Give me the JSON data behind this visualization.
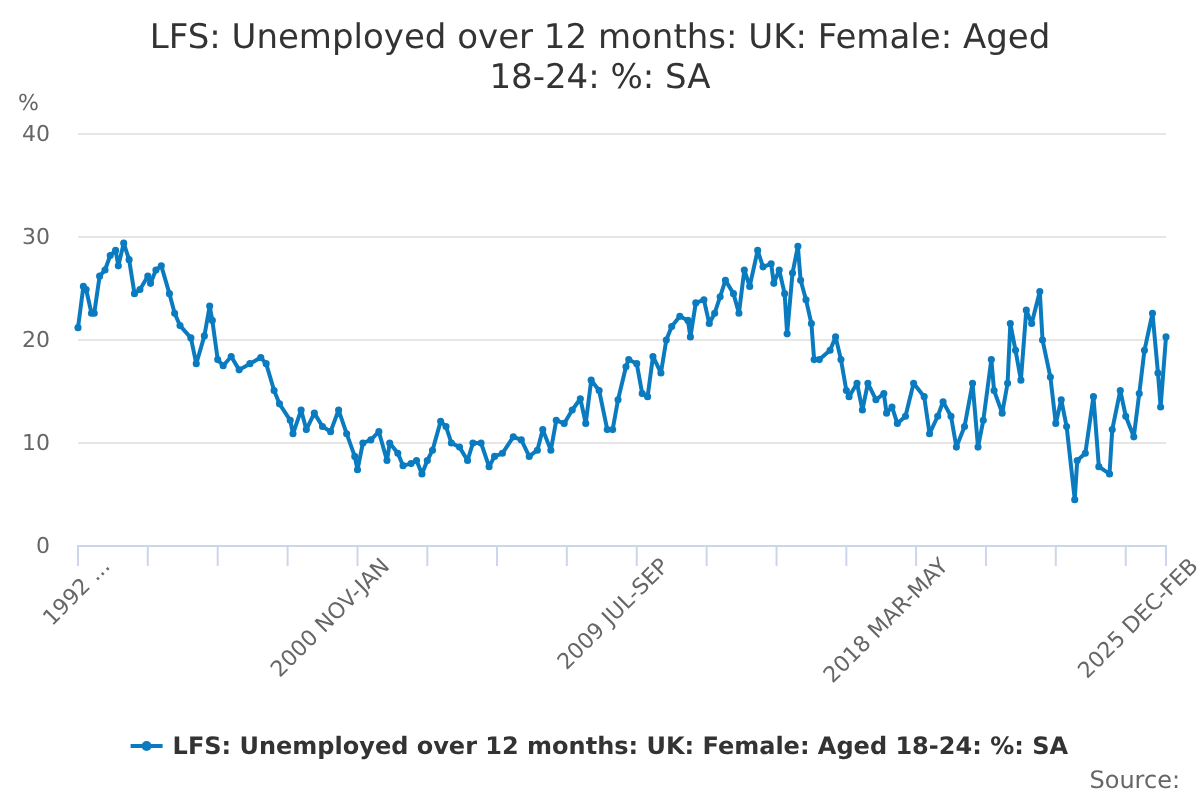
{
  "chart_data": {
    "type": "line",
    "title": "LFS: Unemployed over 12 months: UK: Female: Aged 18-24: %: SA",
    "ylabel": "%",
    "annotations": [
      "Source:"
    ],
    "xlim": [
      "1992-03",
      "2025-12"
    ],
    "xticks": [
      {
        "value": "1992-03",
        "label": "1992 ..."
      },
      {
        "value": "1994-05",
        "label": null
      },
      {
        "value": "1996-07",
        "label": null
      },
      {
        "value": "1998-09",
        "label": null
      },
      {
        "value": "2000-11",
        "label": "2000 NOV-JAN"
      },
      {
        "value": "2003-01",
        "label": null
      },
      {
        "value": "2005-03",
        "label": null
      },
      {
        "value": "2007-05",
        "label": null
      },
      {
        "value": "2009-07",
        "label": "2009 JUL-SEP"
      },
      {
        "value": "2011-09",
        "label": null
      },
      {
        "value": "2013-11",
        "label": null
      },
      {
        "value": "2016-01",
        "label": null
      },
      {
        "value": "2018-03",
        "label": "2018 MAR-MAY"
      },
      {
        "value": "2020-05",
        "label": null
      },
      {
        "value": "2022-07",
        "label": null
      },
      {
        "value": "2024-09",
        "label": null
      },
      {
        "value": "2025-12",
        "label": "2025 DEC-FEB"
      }
    ],
    "ylim": [
      0,
      40
    ],
    "yticks": [
      0,
      10,
      20,
      30,
      40
    ],
    "grid": "y",
    "legend": "bottom",
    "marker": "circle",
    "line_style": "solid",
    "series": [
      {
        "name": "LFS: Unemployed over 12 months: UK: Female: Aged 18-24: %: SA",
        "color": "#0b7bc0",
        "x": [
          "1992-03",
          "1992-05",
          "1992-06",
          "1992-08",
          "1992-09",
          "1992-11",
          "1993-01",
          "1993-03",
          "1993-05",
          "1993-06",
          "1993-08",
          "1993-10",
          "1993-12",
          "1994-02",
          "1994-05",
          "1994-06",
          "1994-08",
          "1994-10",
          "1995-01",
          "1995-03",
          "1995-05",
          "1995-09",
          "1995-11",
          "1996-02",
          "1996-04",
          "1996-05",
          "1996-07",
          "1996-09",
          "1996-12",
          "1997-03",
          "1997-07",
          "1997-11",
          "1998-01",
          "1998-04",
          "1998-06",
          "1998-10",
          "1998-11",
          "1999-02",
          "1999-04",
          "1999-07",
          "1999-10",
          "2000-01",
          "2000-04",
          "2000-07",
          "2000-10",
          "2000-11",
          "2001-01",
          "2001-04",
          "2001-07",
          "2001-10",
          "2001-11",
          "2002-02",
          "2002-04",
          "2002-07",
          "2002-09",
          "2002-11",
          "2003-01",
          "2003-03",
          "2003-06",
          "2003-08",
          "2003-10",
          "2004-01",
          "2004-04",
          "2004-06",
          "2004-09",
          "2004-12",
          "2005-02",
          "2005-05",
          "2005-09",
          "2005-12",
          "2006-03",
          "2006-06",
          "2006-08",
          "2006-11",
          "2007-01",
          "2007-04",
          "2007-07",
          "2007-10",
          "2007-12",
          "2008-02",
          "2008-05",
          "2008-08",
          "2008-10",
          "2008-12",
          "2009-03",
          "2009-04",
          "2009-07",
          "2009-09",
          "2009-11",
          "2010-01",
          "2010-04",
          "2010-06",
          "2010-08",
          "2010-11",
          "2011-02",
          "2011-03",
          "2011-05",
          "2011-08",
          "2011-10",
          "2011-12",
          "2012-02",
          "2012-04",
          "2012-07",
          "2012-09",
          "2012-11",
          "2013-01",
          "2013-04",
          "2013-06",
          "2013-09",
          "2013-10",
          "2013-12",
          "2014-02",
          "2014-03",
          "2014-05",
          "2014-07",
          "2014-08",
          "2014-10",
          "2014-12",
          "2015-01",
          "2015-03",
          "2015-07",
          "2015-09",
          "2015-11",
          "2016-01",
          "2016-02",
          "2016-05",
          "2016-07",
          "2016-09",
          "2016-12",
          "2017-03",
          "2017-04",
          "2017-06",
          "2017-08",
          "2017-11",
          "2018-02",
          "2018-06",
          "2018-08",
          "2018-11",
          "2019-01",
          "2019-04",
          "2019-06",
          "2019-09",
          "2019-12",
          "2020-02",
          "2020-04",
          "2020-07",
          "2020-08",
          "2020-11",
          "2021-01",
          "2021-02",
          "2021-04",
          "2021-06",
          "2021-08",
          "2021-10",
          "2022-01",
          "2022-02",
          "2022-05",
          "2022-07",
          "2022-09",
          "2022-11",
          "2023-02",
          "2023-03",
          "2023-06",
          "2023-09",
          "2023-11",
          "2024-03",
          "2024-04",
          "2024-07",
          "2024-09",
          "2024-12",
          "2025-02",
          "2025-04",
          "2025-07",
          "2025-09",
          "2025-10",
          "2025-12"
        ],
        "values": [
          21.2,
          25.2,
          24.9,
          22.6,
          22.6,
          26.2,
          26.8,
          28.2,
          28.7,
          27.2,
          29.4,
          27.8,
          24.5,
          24.9,
          26.2,
          25.5,
          26.8,
          27.2,
          24.5,
          22.6,
          21.4,
          20.2,
          17.7,
          20.4,
          23.3,
          21.9,
          18.1,
          17.5,
          18.4,
          17.1,
          17.7,
          18.3,
          17.7,
          15.1,
          13.8,
          12.2,
          10.9,
          13.2,
          11.3,
          12.9,
          11.6,
          11.1,
          13.2,
          10.9,
          8.7,
          7.4,
          10.0,
          10.3,
          11.1,
          8.3,
          10.0,
          9.0,
          7.8,
          8.0,
          8.3,
          7.0,
          8.3,
          9.3,
          12.1,
          11.6,
          10.0,
          9.6,
          8.3,
          10.0,
          10.0,
          7.7,
          8.7,
          9.0,
          10.6,
          10.3,
          8.7,
          9.3,
          11.3,
          9.3,
          12.2,
          11.9,
          13.2,
          14.3,
          11.9,
          16.1,
          15.1,
          11.3,
          11.3,
          14.2,
          17.4,
          18.1,
          17.7,
          14.8,
          14.5,
          18.4,
          16.8,
          20.0,
          21.3,
          22.3,
          21.9,
          20.3,
          23.6,
          23.9,
          21.6,
          22.6,
          24.2,
          25.8,
          24.5,
          22.6,
          26.8,
          25.2,
          28.7,
          27.1,
          27.4,
          25.5,
          26.8,
          24.5,
          20.6,
          26.5,
          29.1,
          25.8,
          23.9,
          21.6,
          18.1,
          18.1,
          19.0,
          20.3,
          18.1,
          15.1,
          14.5,
          15.8,
          13.2,
          15.8,
          14.2,
          14.8,
          12.9,
          13.5,
          11.9,
          12.6,
          15.8,
          14.5,
          10.9,
          12.6,
          14.0,
          12.6,
          9.6,
          11.6,
          15.8,
          9.6,
          12.2,
          18.1,
          15.1,
          12.9,
          15.8,
          21.6,
          19.0,
          16.1,
          22.9,
          21.6,
          24.7,
          20.0,
          16.4,
          11.9,
          14.2,
          11.6,
          4.5,
          8.3,
          9.0,
          14.5,
          7.7,
          7.0,
          11.3,
          15.1,
          12.6,
          10.6,
          14.8,
          19.0,
          22.6,
          16.8,
          13.5,
          20.3
        ]
      }
    ]
  }
}
